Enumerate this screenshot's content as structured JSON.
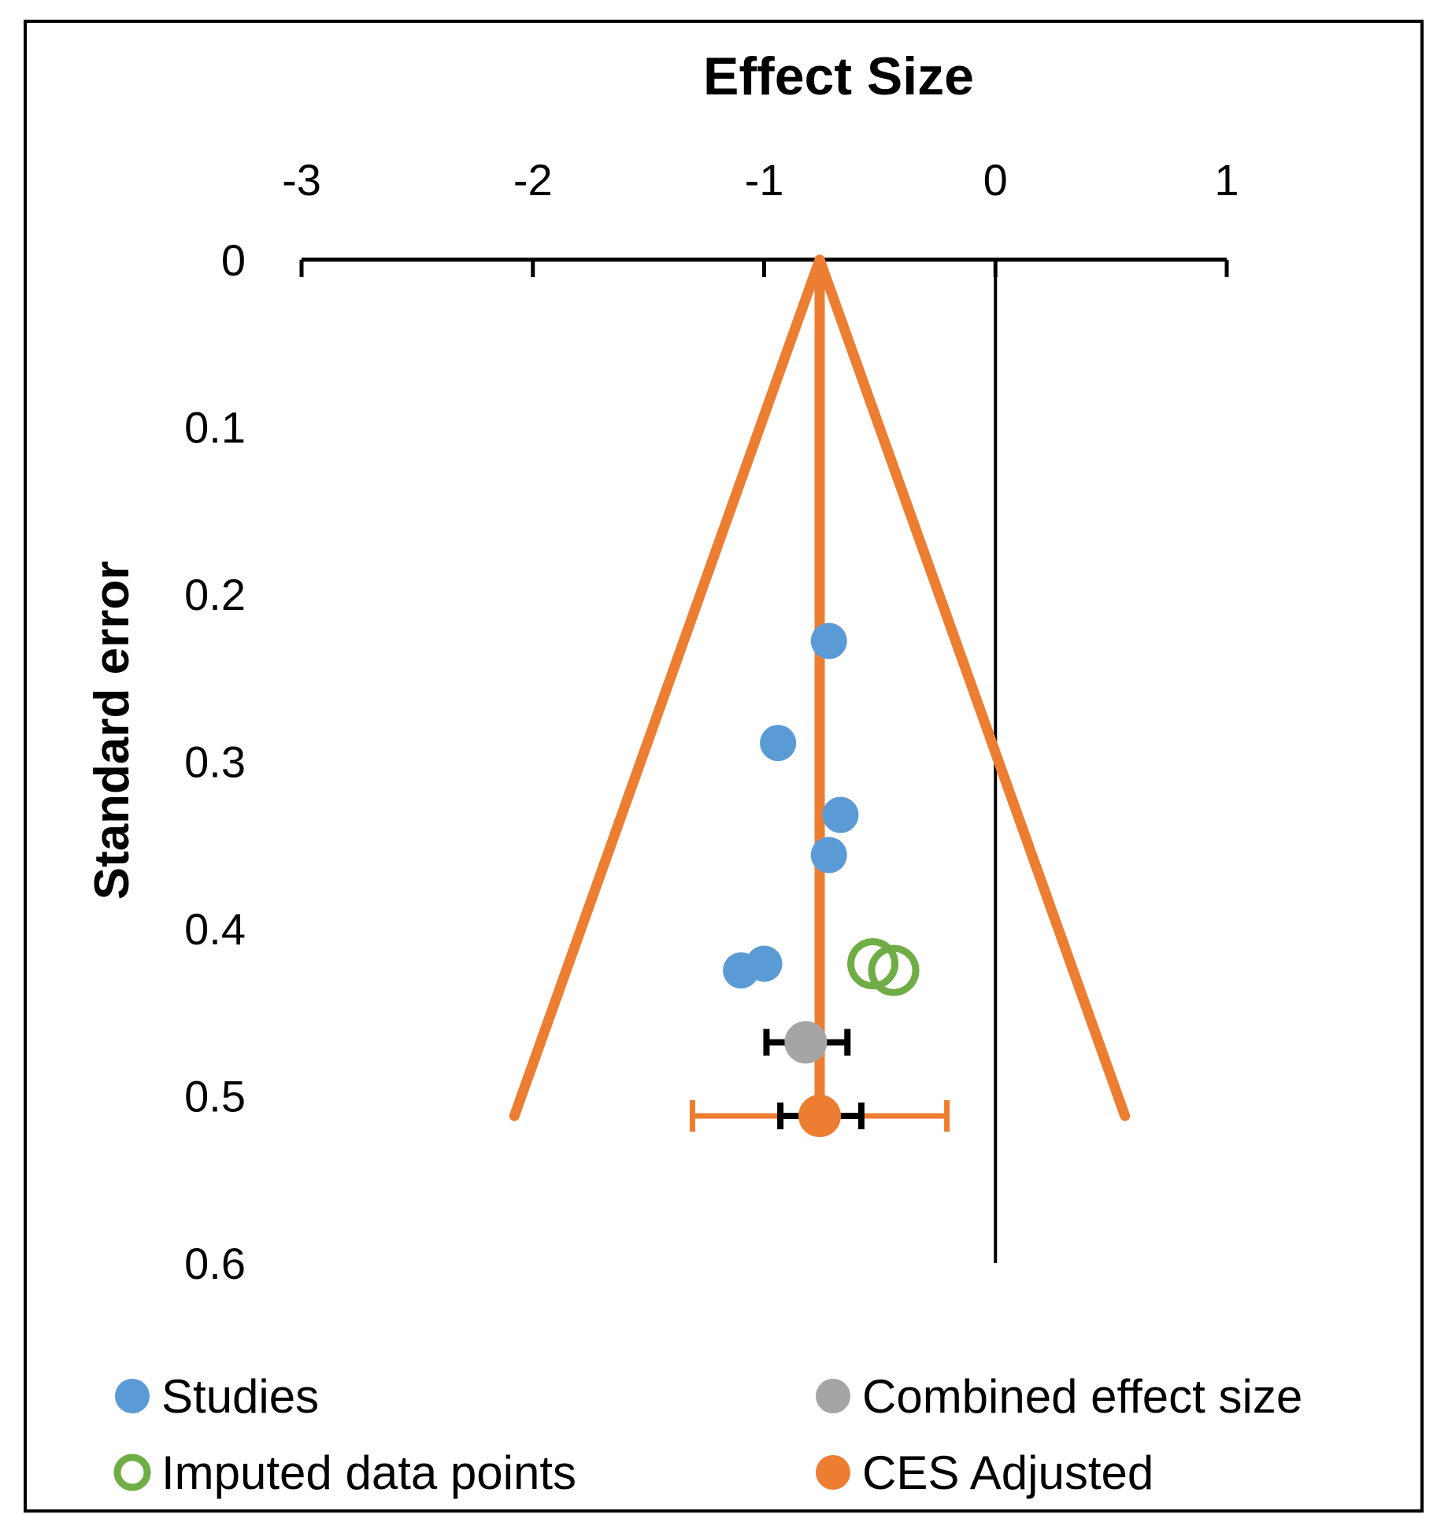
{
  "chart_data": {
    "type": "scatter",
    "title": "Effect Size",
    "xlabel": "Effect Size",
    "ylabel": "Standard error",
    "xlim": [
      -3,
      1
    ],
    "ylim": [
      0,
      0.6
    ],
    "x_ticks": [
      "-3",
      "-2",
      "-1",
      "0",
      "1"
    ],
    "y_ticks": [
      "0",
      "0.1",
      "0.2",
      "0.3",
      "0.4",
      "0.5",
      "0.6"
    ],
    "colors": {
      "studies": "#5B9BD5",
      "imputed": "#70AD47",
      "combined": "#A5A5A5",
      "adjusted": "#ED7D31",
      "axis": "#000000"
    },
    "series": [
      {
        "name": "Studies",
        "marker": "filled-circle",
        "points": [
          {
            "x": -0.72,
            "y": 0.228
          },
          {
            "x": -0.94,
            "y": 0.289
          },
          {
            "x": -0.67,
            "y": 0.332
          },
          {
            "x": -0.72,
            "y": 0.356
          },
          {
            "x": -1.0,
            "y": 0.421
          },
          {
            "x": -1.1,
            "y": 0.425
          }
        ]
      },
      {
        "name": "Combined effect size",
        "marker": "filled-circle",
        "points": [
          {
            "x": -0.82,
            "y": 0.468
          }
        ],
        "ci": [
          -0.99,
          -0.64
        ]
      },
      {
        "name": "Imputed data points",
        "marker": "open-circle",
        "points": [
          {
            "x": -0.53,
            "y": 0.421
          },
          {
            "x": -0.44,
            "y": 0.425
          }
        ]
      },
      {
        "name": "CES Adjusted",
        "marker": "filled-circle",
        "points": [
          {
            "x": -0.76,
            "y": 0.512
          }
        ],
        "ci": [
          -0.93,
          -0.58
        ],
        "prediction_interval": [
          -1.31,
          -0.21
        ]
      }
    ],
    "funnel": {
      "apex": {
        "x": -0.76,
        "y": 0
      },
      "left_base": {
        "x": -2.08,
        "y": 0.512
      },
      "right_base": {
        "x": 0.56,
        "y": 0.512
      }
    },
    "reference_line_x": 0,
    "legend": {
      "position": "bottom",
      "items": [
        "Studies",
        "Combined effect size",
        "Imputed data points",
        "CES Adjusted"
      ]
    }
  }
}
